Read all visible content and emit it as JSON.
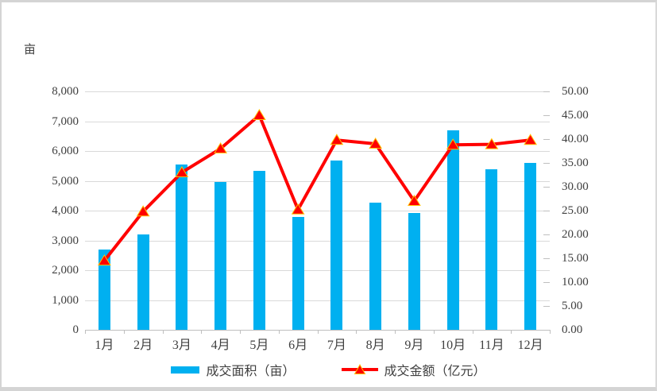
{
  "unit_label": "亩",
  "chart_data": {
    "type": "bar+line combo",
    "title": "",
    "categories": [
      "1月",
      "2月",
      "3月",
      "4月",
      "5月",
      "6月",
      "7月",
      "8月",
      "9月",
      "10月",
      "11月",
      "12月"
    ],
    "series": [
      {
        "name": "成交面积（亩）",
        "type": "bar",
        "axis": "left",
        "values": [
          2700,
          3210,
          5560,
          4950,
          5330,
          3790,
          5670,
          4270,
          3920,
          6700,
          5390,
          5600
        ]
      },
      {
        "name": "成交金额（亿元）",
        "type": "line",
        "axis": "right",
        "marker": "triangle-up",
        "values": [
          14.5,
          24.8,
          33.0,
          38.0,
          45.0,
          25.2,
          39.8,
          39.0,
          27.0,
          38.8,
          38.9,
          39.8
        ]
      }
    ],
    "left_axis": {
      "unit": "亩",
      "min": 0,
      "max": 8000,
      "step": 1000,
      "tick_labels_top_to_bottom": [
        "8,000",
        "7,000",
        "6,000",
        "5,000",
        "4,000",
        "3,000",
        "2,000",
        "1,000",
        "0"
      ]
    },
    "right_axis": {
      "unit": "亿元",
      "min": 0,
      "max": 50,
      "step": 5,
      "tick_labels_top_to_bottom": [
        "50.00",
        "45.00",
        "40.00",
        "35.00",
        "30.00",
        "25.00",
        "20.00",
        "15.00",
        "10.00",
        "5.00",
        "0.00"
      ]
    },
    "grid": true,
    "legend_position": "bottom"
  },
  "colors": {
    "bar_fill": "#00b0f0",
    "line_stroke": "#ff0000",
    "marker_fill": "#ff0000",
    "marker_border": "#ffc000",
    "gridline": "#d9d9d9",
    "axis_line": "#bfbfbf",
    "text": "#3f3f3f"
  }
}
